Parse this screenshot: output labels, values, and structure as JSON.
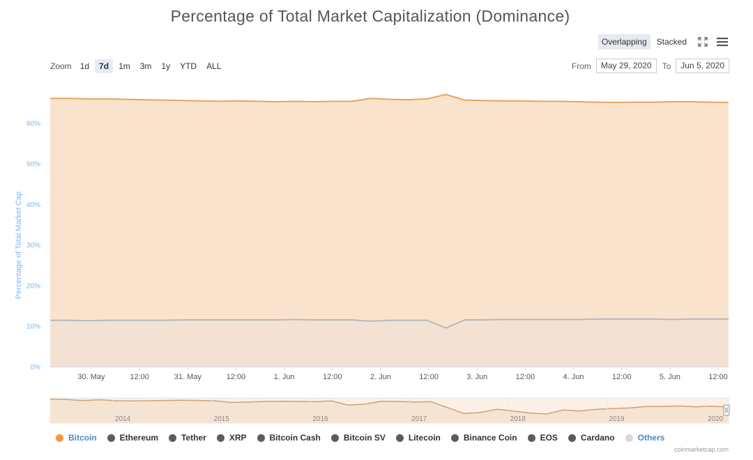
{
  "header": {
    "title": "Percentage of Total Market Capitalization (Dominance)"
  },
  "mode": {
    "overlapping_label": "Overlapping",
    "stacked_label": "Stacked",
    "active": "Overlapping"
  },
  "icons": {
    "fullscreen": "fullscreen-icon",
    "menu": "hamburger-menu-icon"
  },
  "zoom": {
    "label": "Zoom",
    "options": [
      "1d",
      "7d",
      "1m",
      "3m",
      "1y",
      "YTD",
      "ALL"
    ],
    "active": "7d"
  },
  "range": {
    "from_label": "From",
    "from_value": "May 29, 2020",
    "to_label": "To",
    "to_value": "Jun 5, 2020"
  },
  "credit": "coinmarketcap.com",
  "colors": {
    "bitcoin": "#f09a3e",
    "gray": "#5c5c5c",
    "others": "#d9d9d9",
    "axis_blue": "#7cb5ec"
  },
  "chart_data": {
    "type": "area",
    "ylabel": "Percentage of Total Market Cap",
    "ylim": [
      0,
      70
    ],
    "yticks": [
      "0%",
      "10%",
      "20%",
      "30%",
      "40%",
      "50%",
      "60%"
    ],
    "ytick_values": [
      0,
      10,
      20,
      30,
      40,
      50,
      60
    ],
    "xticks": [
      "30. May",
      "12:00",
      "31. May",
      "12:00",
      "1. Jun",
      "12:00",
      "2. Jun",
      "12:00",
      "3. Jun",
      "12:00",
      "4. Jun",
      "12:00",
      "5. Jun",
      "12:00"
    ],
    "grid": true,
    "legend_position": "bottom",
    "series": [
      {
        "name": "Bitcoin",
        "color": "#f09a3e",
        "values": [
          66.0,
          66.0,
          65.9,
          65.9,
          65.8,
          65.7,
          65.6,
          65.5,
          65.4,
          65.3,
          65.4,
          65.3,
          65.2,
          65.3,
          65.2,
          65.3,
          65.3,
          66.0,
          65.8,
          65.7,
          65.9,
          67.0,
          65.6,
          65.5,
          65.4,
          65.4,
          65.3,
          65.3,
          65.2,
          65.1,
          65.0,
          65.1,
          65.1,
          65.2,
          65.2,
          65.1,
          65.0
        ]
      },
      {
        "name": "Ethereum",
        "color": "#aaaaaa",
        "values": [
          11.4,
          11.4,
          11.3,
          11.4,
          11.4,
          11.4,
          11.4,
          11.5,
          11.5,
          11.5,
          11.5,
          11.5,
          11.5,
          11.6,
          11.5,
          11.5,
          11.5,
          11.2,
          11.4,
          11.4,
          11.4,
          9.5,
          11.5,
          11.5,
          11.6,
          11.6,
          11.6,
          11.6,
          11.6,
          11.7,
          11.7,
          11.7,
          11.7,
          11.6,
          11.7,
          11.7,
          11.7
        ]
      }
    ],
    "navigator": {
      "xticks": [
        "2014",
        "2015",
        "2016",
        "2017",
        "2018",
        "2019",
        "2020"
      ],
      "values": [
        95,
        94,
        90,
        93,
        89,
        88,
        89,
        90,
        91,
        90,
        88,
        82,
        84,
        86,
        87,
        86,
        85,
        88,
        72,
        75,
        87,
        86,
        84,
        85,
        62,
        38,
        42,
        55,
        48,
        40,
        36,
        52,
        48,
        55,
        58,
        60,
        66,
        66,
        68,
        65,
        67,
        64
      ]
    }
  },
  "legend": {
    "items": [
      {
        "label": "Bitcoin",
        "color": "#f09a3e",
        "active": true
      },
      {
        "label": "Ethereum",
        "color": "#5c5c5c",
        "active": false
      },
      {
        "label": "Tether",
        "color": "#5c5c5c",
        "active": false
      },
      {
        "label": "XRP",
        "color": "#5c5c5c",
        "active": false
      },
      {
        "label": "Bitcoin Cash",
        "color": "#5c5c5c",
        "active": false
      },
      {
        "label": "Bitcoin SV",
        "color": "#5c5c5c",
        "active": false
      },
      {
        "label": "Litecoin",
        "color": "#5c5c5c",
        "active": false
      },
      {
        "label": "Binance Coin",
        "color": "#5c5c5c",
        "active": false
      },
      {
        "label": "EOS",
        "color": "#5c5c5c",
        "active": false
      },
      {
        "label": "Cardano",
        "color": "#5c5c5c",
        "active": false
      },
      {
        "label": "Others",
        "color": "#d9d9d9",
        "active": false
      }
    ]
  }
}
